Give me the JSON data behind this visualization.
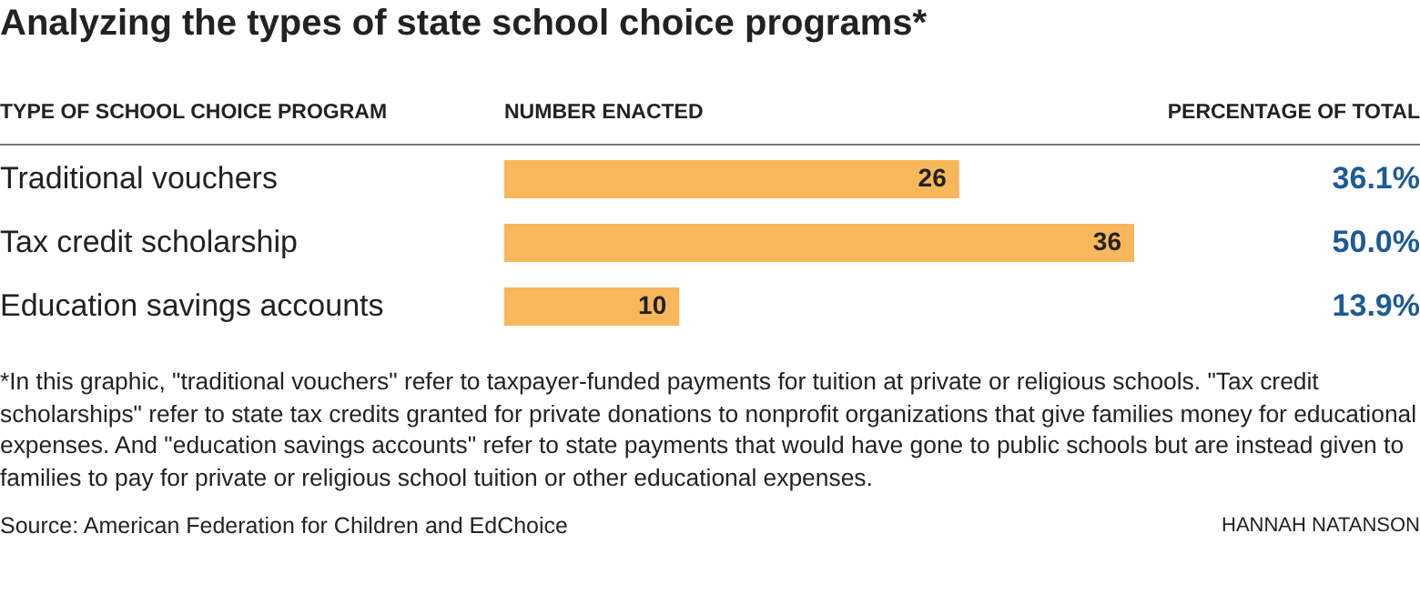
{
  "chart_data": {
    "type": "bar",
    "orientation": "horizontal",
    "title": "Analyzing the types of state school choice programs*",
    "ylabel": "TYPE OF SCHOOL CHOICE PROGRAM",
    "xlabel": "NUMBER ENACTED",
    "categories": [
      "Traditional vouchers",
      "Tax credit scholarship",
      "Education savings accounts"
    ],
    "values": [
      26,
      36,
      10
    ],
    "color": "#f8b75a",
    "data_labels": true,
    "annotations": [
      "PERCENTAGE OF TOTAL",
      "36.1%",
      "50.0%",
      "13.9%",
      "*In this graphic, \"traditional vouchers\" refer to taxpayer-funded payments for tuition at private or religious schools. \"Tax credit scholarships\" refer to state tax credits granted for private donations to nonprofit organizations that give families money for educational expenses. And \"education savings accounts\" refer to state payments that would have gone to public schools but are instead given to families to pay for private or religious school tuition or other educational expenses.",
      "Source: American Federation for Children and EdChoice",
      "HANNAH NATANSON"
    ]
  }
}
